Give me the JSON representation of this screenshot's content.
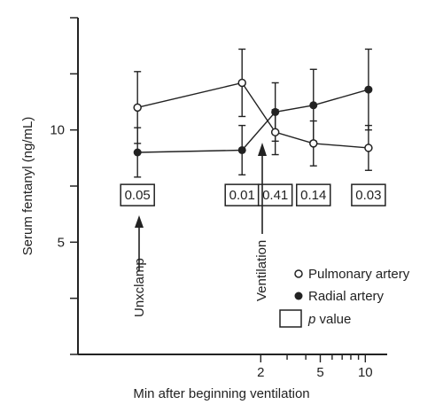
{
  "chart_data": {
    "type": "line",
    "xlabel": "Min after beginning ventilation",
    "ylabel": "Serum fentanyl (ng/mL)",
    "x_scale": "log",
    "xlim": [
      0.12,
      14
    ],
    "ylim": [
      0,
      15
    ],
    "x_ticks": [
      2,
      5,
      10
    ],
    "x_tick_labels": [
      "2",
      "5",
      "10"
    ],
    "y_ticks": [
      5,
      10
    ],
    "y_tick_labels": [
      "5",
      "10"
    ],
    "y_minor_ticks": [
      0,
      2.5,
      7.5,
      12.5,
      15
    ],
    "legend_position": "bottom-right",
    "series": [
      {
        "name": "Pulmonary artery",
        "marker": "open-circle",
        "points": [
          {
            "x": 0.3,
            "y": 11.0,
            "err": 1.6
          },
          {
            "x": 1.5,
            "y": 12.1,
            "err": 1.5
          },
          {
            "x": 2.5,
            "y": 9.9,
            "err": 1.0
          },
          {
            "x": 4.5,
            "y": 9.4,
            "err": 1.0
          },
          {
            "x": 10.5,
            "y": 9.2,
            "err": 1.0
          }
        ]
      },
      {
        "name": "Radial artery",
        "marker": "filled-circle",
        "points": [
          {
            "x": 0.3,
            "y": 9.0,
            "err": 1.1
          },
          {
            "x": 1.5,
            "y": 9.1,
            "err": 1.1
          },
          {
            "x": 2.5,
            "y": 10.8,
            "err": 1.3
          },
          {
            "x": 4.5,
            "y": 11.1,
            "err": 1.6
          },
          {
            "x": 10.5,
            "y": 11.8,
            "err": 1.8
          }
        ]
      }
    ],
    "p_values": [
      {
        "x": 0.3,
        "label": "0.05"
      },
      {
        "x": 1.5,
        "label": "0.01"
      },
      {
        "x": 2.5,
        "label": "0.41"
      },
      {
        "x": 4.5,
        "label": "0.14"
      },
      {
        "x": 10.5,
        "label": "0.03"
      }
    ],
    "p_value_y": 7.1,
    "annotations": [
      {
        "label": "Unxclamp",
        "x": 0.3
      },
      {
        "label": "Ventilation",
        "x": 2.0
      }
    ],
    "legend": {
      "pulmonary": "Pulmonary artery",
      "radial": "Radial artery",
      "p_label": "p",
      "p_suffix": " value"
    }
  }
}
